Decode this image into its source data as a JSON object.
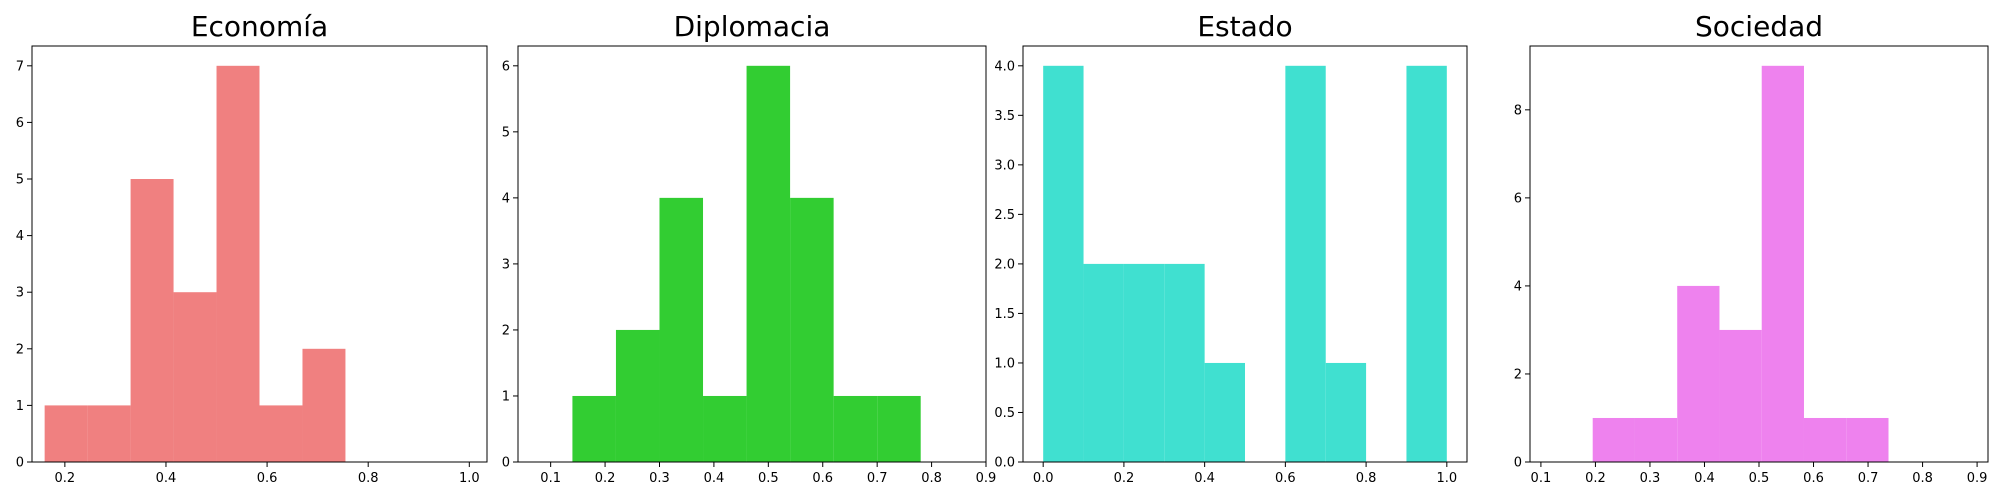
{
  "chart_data": [
    {
      "type": "bar",
      "title": "Economía",
      "color": "#F08080",
      "xlim": [
        0.135,
        1.035
      ],
      "ylim": [
        0,
        7.35
      ],
      "xticks": [
        0.2,
        0.4,
        0.6,
        0.8,
        1.0
      ],
      "xtick_labels": [
        "0.2",
        "0.4",
        "0.6",
        "0.8",
        "1.0"
      ],
      "yticks": [
        0,
        1,
        2,
        3,
        4,
        5,
        6,
        7
      ],
      "ytick_labels": [
        "0",
        "1",
        "2",
        "3",
        "4",
        "5",
        "6",
        "7"
      ],
      "bins": [
        {
          "x0": 0.16,
          "x1": 0.245,
          "value": 1
        },
        {
          "x0": 0.245,
          "x1": 0.33,
          "value": 1
        },
        {
          "x0": 0.33,
          "x1": 0.415,
          "value": 5
        },
        {
          "x0": 0.415,
          "x1": 0.5,
          "value": 3
        },
        {
          "x0": 0.5,
          "x1": 0.585,
          "value": 7
        },
        {
          "x0": 0.585,
          "x1": 0.67,
          "value": 1
        },
        {
          "x0": 0.67,
          "x1": 0.755,
          "value": 2
        }
      ]
    },
    {
      "type": "bar",
      "title": "Diplomacia",
      "color": "#32CD32",
      "xlim": [
        0.04,
        0.9
      ],
      "ylim": [
        0,
        6.3
      ],
      "xticks": [
        0.1,
        0.2,
        0.3,
        0.4,
        0.5,
        0.6,
        0.7,
        0.8,
        0.9
      ],
      "xtick_labels": [
        "0.1",
        "0.2",
        "0.3",
        "0.4",
        "0.5",
        "0.6",
        "0.7",
        "0.8",
        "0.9"
      ],
      "yticks": [
        0,
        1,
        2,
        3,
        4,
        5,
        6
      ],
      "ytick_labels": [
        "0",
        "1",
        "2",
        "3",
        "4",
        "5",
        "6"
      ],
      "bins": [
        {
          "x0": 0.14,
          "x1": 0.22,
          "value": 1
        },
        {
          "x0": 0.22,
          "x1": 0.3,
          "value": 2
        },
        {
          "x0": 0.3,
          "x1": 0.38,
          "value": 4
        },
        {
          "x0": 0.38,
          "x1": 0.46,
          "value": 1
        },
        {
          "x0": 0.46,
          "x1": 0.54,
          "value": 6
        },
        {
          "x0": 0.54,
          "x1": 0.62,
          "value": 4
        },
        {
          "x0": 0.62,
          "x1": 0.7,
          "value": 1
        },
        {
          "x0": 0.7,
          "x1": 0.78,
          "value": 1
        }
      ]
    },
    {
      "type": "bar",
      "title": "Estado",
      "color": "#40E0D0",
      "xlim": [
        -0.05,
        1.05
      ],
      "ylim": [
        0,
        4.2
      ],
      "xticks": [
        0.0,
        0.2,
        0.4,
        0.6,
        0.8,
        1.0
      ],
      "xtick_labels": [
        "0.0",
        "0.2",
        "0.4",
        "0.6",
        "0.8",
        "1.0"
      ],
      "yticks": [
        0,
        0.5,
        1.0,
        1.5,
        2.0,
        2.5,
        3.0,
        3.5,
        4.0
      ],
      "ytick_labels": [
        "0.0",
        "0.5",
        "1.0",
        "1.5",
        "2.0",
        "2.5",
        "3.0",
        "3.5",
        "4.0"
      ],
      "bins": [
        {
          "x0": 0.0,
          "x1": 0.1,
          "value": 4
        },
        {
          "x0": 0.1,
          "x1": 0.2,
          "value": 2
        },
        {
          "x0": 0.2,
          "x1": 0.3,
          "value": 2
        },
        {
          "x0": 0.3,
          "x1": 0.4,
          "value": 2
        },
        {
          "x0": 0.4,
          "x1": 0.5,
          "value": 1
        },
        {
          "x0": 0.5,
          "x1": 0.6,
          "value": 0
        },
        {
          "x0": 0.6,
          "x1": 0.7,
          "value": 4
        },
        {
          "x0": 0.7,
          "x1": 0.8,
          "value": 1
        },
        {
          "x0": 0.8,
          "x1": 0.9,
          "value": 0
        },
        {
          "x0": 0.9,
          "x1": 1.0,
          "value": 4
        }
      ]
    },
    {
      "type": "bar",
      "title": "Sociedad",
      "color": "#EE82EE",
      "xlim": [
        0.08,
        0.92
      ],
      "ylim": [
        0,
        9.45
      ],
      "xticks": [
        0.1,
        0.2,
        0.3,
        0.4,
        0.5,
        0.6,
        0.7,
        0.8,
        0.9
      ],
      "xtick_labels": [
        "0.1",
        "0.2",
        "0.3",
        "0.4",
        "0.5",
        "0.6",
        "0.7",
        "0.8",
        "0.9"
      ],
      "yticks": [
        0,
        2,
        4,
        6,
        8
      ],
      "ytick_labels": [
        "0",
        "2",
        "4",
        "6",
        "8"
      ],
      "bins": [
        {
          "x0": 0.195,
          "x1": 0.2725,
          "value": 1
        },
        {
          "x0": 0.2725,
          "x1": 0.35,
          "value": 1
        },
        {
          "x0": 0.35,
          "x1": 0.4275,
          "value": 4
        },
        {
          "x0": 0.4275,
          "x1": 0.505,
          "value": 3
        },
        {
          "x0": 0.505,
          "x1": 0.5825,
          "value": 9
        },
        {
          "x0": 0.5825,
          "x1": 0.66,
          "value": 1
        },
        {
          "x0": 0.66,
          "x1": 0.7375,
          "value": 1
        }
      ]
    }
  ]
}
